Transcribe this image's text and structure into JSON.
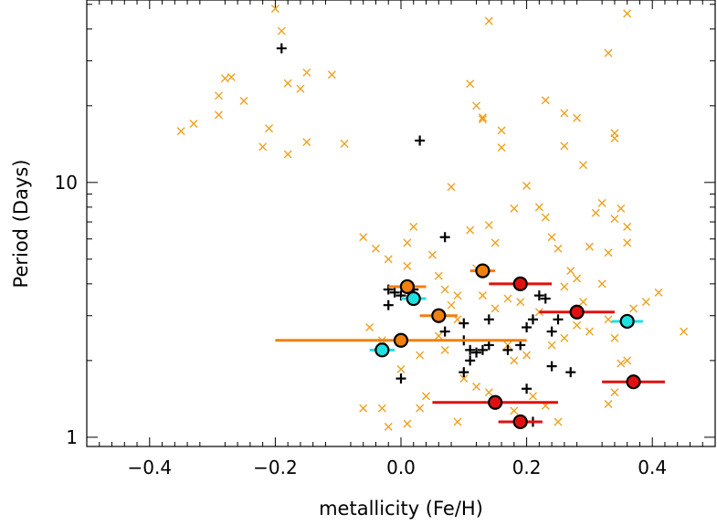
{
  "chart_data": {
    "type": "scatter",
    "title": "",
    "xlabel": "metallicity (Fe/H)",
    "ylabel": "Period (Days)",
    "xlim": [
      -0.5,
      0.5
    ],
    "ylim": [
      0.92,
      52
    ],
    "yscale": "log",
    "x_ticks": [
      -0.4,
      -0.2,
      0.0,
      0.2,
      0.4
    ],
    "x_tick_labels": [
      "−0.4",
      "−0.2",
      "0.0",
      "0.2",
      "0.4"
    ],
    "y_ticks": [
      1,
      10
    ],
    "y_tick_labels": [
      "1",
      "10"
    ],
    "grid": false,
    "legend": "none",
    "colors": {
      "background_points": "#f0a020",
      "black_points": "#000000",
      "orange": "#f08010",
      "cyan": "#20e0e0",
      "red": "#e01010"
    },
    "series": [
      {
        "marker": "x",
        "color": "#f0a020",
        "points": [
          [
            -0.35,
            15.9
          ],
          [
            -0.33,
            17.0
          ],
          [
            -0.29,
            18.4
          ],
          [
            -0.29,
            21.9
          ],
          [
            -0.28,
            25.6
          ],
          [
            -0.27,
            25.9
          ],
          [
            -0.25,
            20.9
          ],
          [
            -0.2,
            48.1
          ],
          [
            -0.19,
            39.3
          ],
          [
            -0.18,
            24.5
          ],
          [
            -0.16,
            23.3
          ],
          [
            -0.15,
            27.0
          ],
          [
            -0.21,
            16.3
          ],
          [
            -0.22,
            13.8
          ],
          [
            -0.18,
            12.9
          ],
          [
            -0.15,
            14.4
          ],
          [
            -0.11,
            26.5
          ],
          [
            -0.09,
            14.2
          ],
          [
            -0.06,
            6.1
          ],
          [
            -0.04,
            5.5
          ],
          [
            -0.02,
            5.0
          ],
          [
            0.01,
            4.7
          ],
          [
            0.01,
            5.8
          ],
          [
            0.02,
            6.7
          ],
          [
            0.05,
            5.2
          ],
          [
            0.06,
            4.3
          ],
          [
            0.07,
            3.8
          ],
          [
            0.08,
            3.3
          ],
          [
            0.09,
            2.9
          ],
          [
            0.09,
            3.6
          ],
          [
            0.06,
            2.5
          ],
          [
            0.07,
            2.2
          ],
          [
            0.03,
            2.1
          ],
          [
            -0.03,
            2.4
          ],
          [
            -0.05,
            2.7
          ],
          [
            0.04,
            1.45
          ],
          [
            0.0,
            1.85
          ],
          [
            0.03,
            1.3
          ],
          [
            0.01,
            1.13
          ],
          [
            0.09,
            1.15
          ],
          [
            0.1,
            1.7
          ],
          [
            0.12,
            1.58
          ],
          [
            0.14,
            1.5
          ],
          [
            0.18,
            1.27
          ],
          [
            0.21,
            1.45
          ],
          [
            0.23,
            1.33
          ],
          [
            0.25,
            1.15
          ],
          [
            0.17,
            2.3
          ],
          [
            0.18,
            2.0
          ],
          [
            0.2,
            2.1
          ],
          [
            0.24,
            2.3
          ],
          [
            0.26,
            2.45
          ],
          [
            0.28,
            2.75
          ],
          [
            0.3,
            2.6
          ],
          [
            0.33,
            2.9
          ],
          [
            0.34,
            2.45
          ],
          [
            0.36,
            2.0
          ],
          [
            0.37,
            3.2
          ],
          [
            0.39,
            3.4
          ],
          [
            0.41,
            3.7
          ],
          [
            0.45,
            2.6
          ],
          [
            0.34,
            1.5
          ],
          [
            0.33,
            1.35
          ],
          [
            0.35,
            1.95
          ],
          [
            0.29,
            3.4
          ],
          [
            0.26,
            3.9
          ],
          [
            0.27,
            4.5
          ],
          [
            0.28,
            4.2
          ],
          [
            0.32,
            4.0
          ],
          [
            0.3,
            5.6
          ],
          [
            0.33,
            5.3
          ],
          [
            0.36,
            5.8
          ],
          [
            0.34,
            7.2
          ],
          [
            0.31,
            7.6
          ],
          [
            0.32,
            8.3
          ],
          [
            0.35,
            7.9
          ],
          [
            0.36,
            6.7
          ],
          [
            0.24,
            6.1
          ],
          [
            0.25,
            5.5
          ],
          [
            0.23,
            7.3
          ],
          [
            0.22,
            8.0
          ],
          [
            0.2,
            9.7
          ],
          [
            0.18,
            7.9
          ],
          [
            0.15,
            5.8
          ],
          [
            0.14,
            6.8
          ],
          [
            0.11,
            6.5
          ],
          [
            0.08,
            9.6
          ],
          [
            0.12,
            4.6
          ],
          [
            0.13,
            3.6
          ],
          [
            0.15,
            3.2
          ],
          [
            0.17,
            3.5
          ],
          [
            0.19,
            3.4
          ],
          [
            0.22,
            3.1
          ],
          [
            0.12,
            20.0
          ],
          [
            0.13,
            17.7
          ],
          [
            0.13,
            18.0
          ],
          [
            0.16,
            16.0
          ],
          [
            0.16,
            13.7
          ],
          [
            0.11,
            24.4
          ],
          [
            0.14,
            43.0
          ],
          [
            0.23,
            21.0
          ],
          [
            0.26,
            18.7
          ],
          [
            0.28,
            17.9
          ],
          [
            0.26,
            13.9
          ],
          [
            0.29,
            11.7
          ],
          [
            0.34,
            14.9
          ],
          [
            0.34,
            15.6
          ],
          [
            0.36,
            46.0
          ],
          [
            0.33,
            32.2
          ],
          [
            -0.06,
            1.3
          ],
          [
            -0.03,
            1.3
          ],
          [
            -0.02,
            1.1
          ]
        ]
      },
      {
        "marker": "+",
        "color": "#000000",
        "points": [
          [
            -0.19,
            33.6
          ],
          [
            0.03,
            14.6
          ],
          [
            0.07,
            6.1
          ],
          [
            -0.02,
            3.8
          ],
          [
            -0.02,
            3.3
          ],
          [
            -0.01,
            3.7
          ],
          [
            0.0,
            3.6
          ],
          [
            0.02,
            3.8
          ],
          [
            0.07,
            2.6
          ],
          [
            0.1,
            2.8
          ],
          [
            0.1,
            2.4
          ],
          [
            0.11,
            2.2
          ],
          [
            0.11,
            2.0
          ],
          [
            0.12,
            2.15
          ],
          [
            0.13,
            2.2
          ],
          [
            0.14,
            2.3
          ],
          [
            0.14,
            2.9
          ],
          [
            0.17,
            2.2
          ],
          [
            0.19,
            2.3
          ],
          [
            0.2,
            2.7
          ],
          [
            0.21,
            2.9
          ],
          [
            0.2,
            1.55
          ],
          [
            0.22,
            3.6
          ],
          [
            0.23,
            3.5
          ],
          [
            0.24,
            2.6
          ],
          [
            0.24,
            1.9
          ],
          [
            0.25,
            2.9
          ],
          [
            0.27,
            1.8
          ],
          [
            0.1,
            1.8
          ],
          [
            0.0,
            1.7
          ],
          [
            0.21,
            1.15
          ]
        ]
      },
      {
        "marker": "circle-errorbar",
        "color": "#f08010",
        "name": "",
        "points": [
          {
            "x": 0.01,
            "y": 3.9,
            "xerr": 0.03
          },
          {
            "x": 0.13,
            "y": 4.5,
            "xerr": 0.02
          },
          {
            "x": 0.06,
            "y": 3.0,
            "xerr": 0.03
          },
          {
            "x": 0.0,
            "y": 2.4,
            "xerr": 0.2
          }
        ]
      },
      {
        "marker": "circle-errorbar",
        "color": "#20e0e0",
        "name": "",
        "points": [
          {
            "x": 0.02,
            "y": 3.5,
            "xerr": 0.02
          },
          {
            "x": -0.03,
            "y": 2.2,
            "xerr": 0.02
          },
          {
            "x": 0.36,
            "y": 2.85,
            "xerr": 0.025
          }
        ]
      },
      {
        "marker": "circle-errorbar",
        "color": "#e01010",
        "name": "",
        "points": [
          {
            "x": 0.19,
            "y": 4.0,
            "xerr": 0.05
          },
          {
            "x": 0.28,
            "y": 3.1,
            "xerr": 0.06
          },
          {
            "x": 0.37,
            "y": 1.65,
            "xerr": 0.05
          },
          {
            "x": 0.15,
            "y": 1.37,
            "xerr": 0.1
          },
          {
            "x": 0.19,
            "y": 1.15,
            "xerr": 0.035
          }
        ]
      }
    ]
  }
}
